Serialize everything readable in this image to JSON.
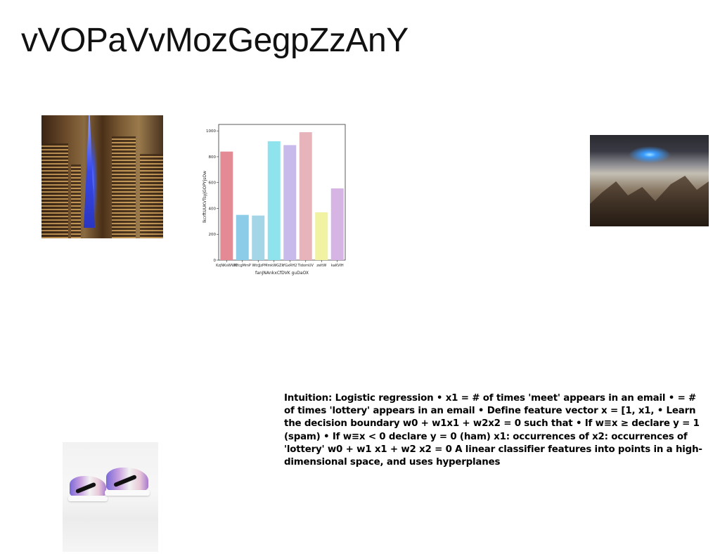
{
  "page": {
    "title": "vVOPaVvMozGegpZzAnY"
  },
  "images": {
    "tower": "city night tower photo",
    "mountain": "rocky peaks above clouds photo",
    "sneakers": "iridescent sneakers photo"
  },
  "chart_data": {
    "type": "bar",
    "xlabel": "fanJNAnkxCfDVK guDaOX",
    "ylabel": "lkcrftUUKVTsyjGOPYjsOw",
    "ylim": [
      0,
      1050
    ],
    "yticks": [
      0,
      200,
      400,
      600,
      800,
      1000
    ],
    "categories": [
      "KzjNKsWWC",
      "MfcgMmP",
      "WtrJJzP",
      "MmkWGZk",
      "YGxRH2",
      "TidomUV",
      "zeItW",
      "kaKVIH"
    ],
    "values": [
      840,
      350,
      345,
      920,
      890,
      990,
      370,
      555
    ],
    "colors": [
      "#e48a94",
      "#8ccce9",
      "#a4d6e8",
      "#8fe3ec",
      "#c8baea",
      "#e8b4bc",
      "#f1f2a2",
      "#d6b4e4"
    ]
  },
  "slide_text": "Intuition: Logistic regression • x1 = # of times 'meet' appears in an email • = # of times 'lottery' appears in an email • Define feature vector x = [1, x1, • Learn the decision boundary w0 + w1x1 + w2x2 = 0 such that • If w≡x ≥ declare y = 1 (spam) • If w≡x < 0 declare y = 0 (ham) x1: occurrences of x2: occurrences of 'lottery' w0 + w1 x1 + w2 x2 = 0 A linear classifier features into points in a high-dimensional space, and uses hyperplanes"
}
